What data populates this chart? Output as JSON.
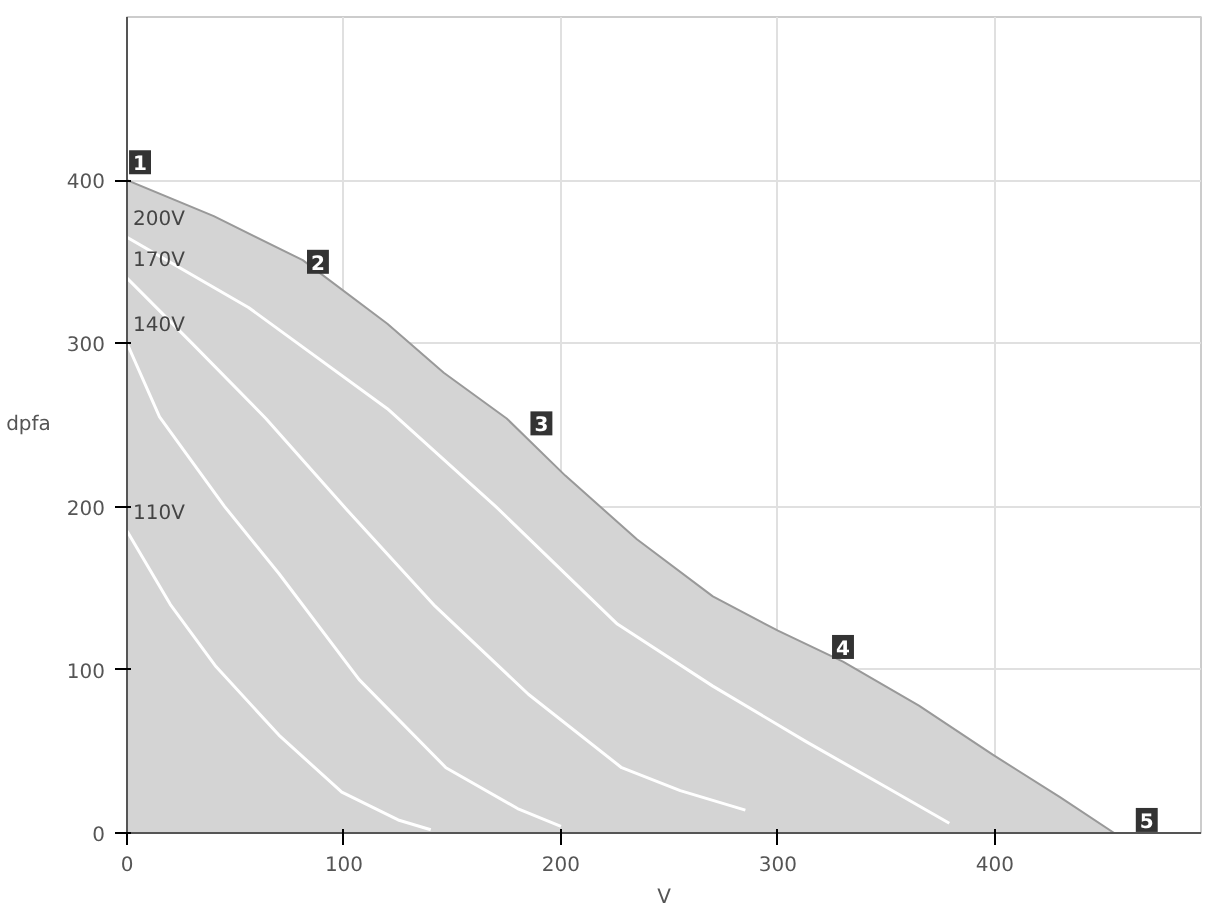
{
  "chart_data": {
    "type": "area",
    "xlabel": "V",
    "ylabel": "dpfa",
    "xlim": [
      0,
      495
    ],
    "ylim": [
      0,
      500
    ],
    "xticks": [
      0,
      100,
      200,
      300,
      400
    ],
    "yticks": [
      0,
      100,
      200,
      300,
      400
    ],
    "grid": true,
    "series": [
      {
        "color": "#d4d4d4",
        "x": [
          0,
          40,
          81,
          120,
          146,
          175,
          202,
          235,
          270,
          300,
          330,
          365,
          399,
          430,
          455
        ],
        "values": [
          400,
          378,
          351,
          312,
          282,
          254,
          219,
          180,
          145,
          124,
          105,
          78,
          48,
          22,
          0
        ]
      },
      {
        "type": "line",
        "name": "200V",
        "color": "#ffffff",
        "x": [
          0,
          56,
          120,
          170,
          226,
          270,
          313,
          350,
          379
        ],
        "values": [
          365,
          322,
          260,
          200,
          128,
          90,
          56,
          28,
          6
        ]
      },
      {
        "type": "line",
        "name": "170V",
        "color": "#ffffff",
        "x": [
          0,
          30,
          64,
          100,
          142,
          185,
          228,
          255,
          285
        ],
        "values": [
          340,
          300,
          254,
          200,
          139,
          85,
          40,
          26,
          14
        ]
      },
      {
        "type": "line",
        "name": "140V",
        "color": "#ffffff",
        "x": [
          0,
          15,
          45,
          70,
          107,
          147,
          180,
          200
        ],
        "values": [
          300,
          255,
          200,
          159,
          94,
          40,
          15,
          4
        ]
      },
      {
        "type": "line",
        "name": "110V",
        "color": "#ffffff",
        "x": [
          0,
          20,
          41,
          70,
          99,
          125,
          140
        ],
        "values": [
          185,
          140,
          102,
          60,
          25,
          8,
          2
        ]
      }
    ],
    "annotations": [
      {
        "text": "1",
        "x": 6,
        "y": 411
      },
      {
        "text": "2",
        "x": 88,
        "y": 350
      },
      {
        "text": "3",
        "x": 191,
        "y": 251
      },
      {
        "text": "4",
        "x": 330,
        "y": 114
      },
      {
        "text": "5",
        "x": 470,
        "y": 8
      }
    ]
  }
}
